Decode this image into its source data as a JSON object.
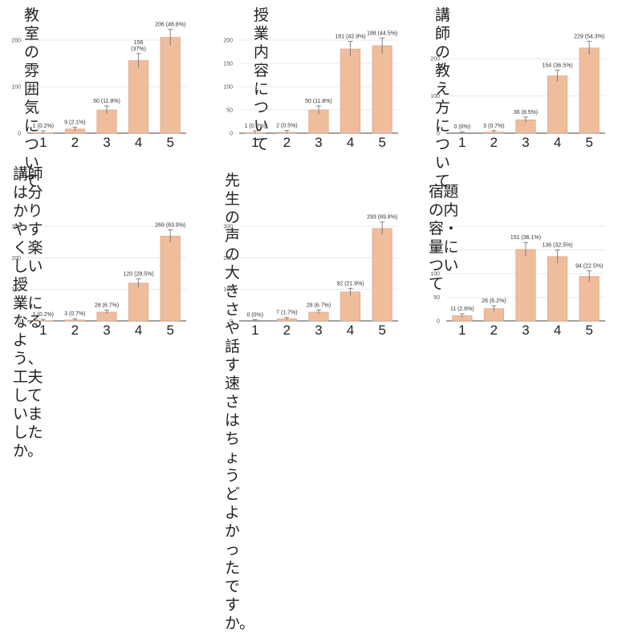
{
  "chart_data": [
    {
      "type": "bar",
      "title": "教室の雰囲気について",
      "categories": [
        "1",
        "2",
        "3",
        "4",
        "5"
      ],
      "values": [
        1,
        9,
        50,
        156,
        206
      ],
      "data_labels": [
        "1 (0.2%)",
        "9 (2.1%)",
        "50 (11.8%)",
        "156\n(37%)",
        "206 (48.8%)"
      ],
      "ylim": [
        0,
        200
      ],
      "yticks": [
        "0",
        "100",
        "200"
      ],
      "error_bars": true,
      "grid": true
    },
    {
      "type": "bar",
      "title": "授業内容について",
      "categories": [
        "1",
        "2",
        "3",
        "4",
        "5"
      ],
      "values": [
        1,
        2,
        50,
        181,
        188
      ],
      "data_labels": [
        "1 (0.2%)",
        "2 (0.5%)",
        "50 (11.8%)",
        "181 (42.9%)",
        "188 (44.5%)"
      ],
      "ylim": [
        0,
        200
      ],
      "yticks": [
        "0",
        "50",
        "100",
        "150",
        "200"
      ],
      "error_bars": true,
      "grid": true
    },
    {
      "type": "bar",
      "title": "講師の教え方について",
      "categories": [
        "1",
        "2",
        "3",
        "4",
        "5"
      ],
      "values": [
        0,
        3,
        36,
        154,
        229
      ],
      "data_labels": [
        "0 (0%)",
        "3 (0.7%)",
        "36 (8.5%)",
        "154 (36.5%)",
        "229 (54.3%)"
      ],
      "ylim": [
        0,
        250
      ],
      "yticks": [
        "0",
        "100",
        "200"
      ],
      "error_bars": true,
      "grid": true
    },
    {
      "type": "bar",
      "title": "講師は分かりやすく楽しい授\n業になるよう、工夫していま\nしたか。",
      "categories": [
        "1",
        "2",
        "3",
        "4",
        "5"
      ],
      "values": [
        1,
        3,
        28,
        120,
        269
      ],
      "data_labels": [
        "1 (0.2%)",
        "3 (0.7%)",
        "28 (6.7%)",
        "120 (28.5%)",
        "269 (63.9%)"
      ],
      "ylim": [
        0,
        300
      ],
      "yticks": [
        "0",
        "100",
        "200",
        "300"
      ],
      "error_bars": true,
      "grid": true
    },
    {
      "type": "bar",
      "title": "先生の声の大きさや話す速さ\nはちょうどよかったですか。",
      "categories": [
        "1",
        "2",
        "3",
        "4",
        "5"
      ],
      "values": [
        0,
        7,
        28,
        92,
        293
      ],
      "data_labels": [
        "0 (0%)",
        "7 (1.7%)",
        "28 (6.7%)",
        "92 (21.9%)",
        "293 (69.8%)"
      ],
      "ylim": [
        0,
        300
      ],
      "yticks": [
        "0",
        "100",
        "200",
        "300"
      ],
      "error_bars": true,
      "grid": true
    },
    {
      "type": "bar",
      "title": "宿題の内容・量について",
      "categories": [
        "1",
        "2",
        "3",
        "4",
        "5"
      ],
      "values": [
        11,
        26,
        151,
        136,
        94
      ],
      "data_labels": [
        "11 (2.6%)",
        "26 (6.2%)",
        "151 (36.1%)",
        "136 (32.5%)",
        "94 (22.5%)"
      ],
      "ylim": [
        0,
        200
      ],
      "yticks": [
        "0",
        "50",
        "100",
        "150",
        "200"
      ],
      "error_bars": true,
      "grid": true
    }
  ],
  "colors": {
    "bar_fill": "#efbc9c",
    "bar_stroke": "#d9a383",
    "error_bar": "#777777",
    "grid": "#e3e3e3",
    "axis": "#444444"
  }
}
